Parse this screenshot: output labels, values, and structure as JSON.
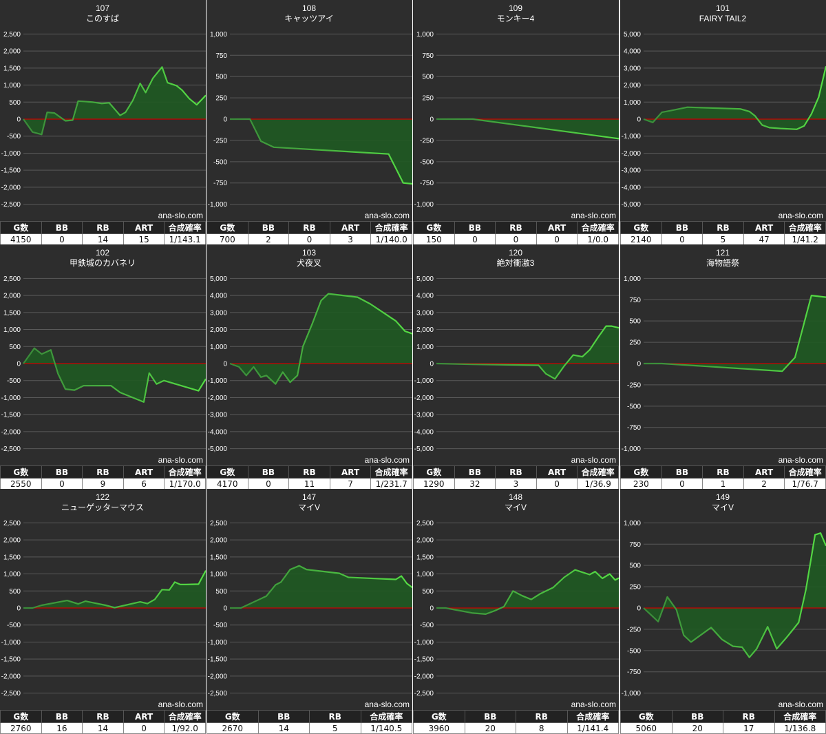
{
  "style": {
    "background": "#2d2d2d",
    "gridline": "#5a5a5a",
    "zero_line": "#cc0000",
    "line": "#55dd44",
    "line_dark": "#3a8a3a",
    "fill": "#1f5a22",
    "text": "#ffffff",
    "watermark": "ana-slo.com"
  },
  "chart_data": [
    {
      "type": "area",
      "machine_no": "107",
      "title": "このすば",
      "ylim": [
        -2750,
        2750
      ],
      "yticks": [
        2500,
        2000,
        1500,
        1000,
        500,
        0,
        -500,
        -1000,
        -1500,
        -2000,
        -2500
      ],
      "ytick_labels": [
        "2,500",
        "2,000",
        "1,500",
        "1,000",
        "500",
        "0",
        "-500",
        "-1,000",
        "-1,500",
        "-2,000",
        "-2,500"
      ],
      "x": [
        0,
        0.05,
        0.1,
        0.13,
        0.17,
        0.23,
        0.27,
        0.3,
        0.33,
        0.38,
        0.43,
        0.47,
        0.53,
        0.56,
        0.6,
        0.64,
        0.67,
        0.71,
        0.76,
        0.79,
        0.84,
        0.87,
        0.91,
        0.95,
        1
      ],
      "values": [
        0,
        -380,
        -450,
        200,
        180,
        -50,
        -30,
        530,
        520,
        500,
        460,
        480,
        110,
        200,
        550,
        1050,
        780,
        1200,
        1530,
        1070,
        980,
        850,
        600,
        420,
        700
      ],
      "stats": {
        "headers": [
          "G数",
          "BB",
          "RB",
          "ART",
          "合成確率"
        ],
        "values": [
          "4150",
          "0",
          "14",
          "15",
          "1/143.1"
        ]
      }
    },
    {
      "type": "area",
      "machine_no": "108",
      "title": "キャッツアイ",
      "ylim": [
        -1100,
        1100
      ],
      "yticks": [
        1000,
        750,
        500,
        250,
        0,
        -250,
        -500,
        -750,
        -1000
      ],
      "ytick_labels": [
        "1,000",
        "750",
        "500",
        "250",
        "0",
        "-250",
        "-500",
        "-750",
        "-1,000"
      ],
      "x": [
        0,
        0.11,
        0.17,
        0.24,
        0.87,
        0.95,
        1
      ],
      "values": [
        0,
        0,
        -260,
        -330,
        -410,
        -750,
        -760
      ],
      "stats": {
        "headers": [
          "G数",
          "BB",
          "RB",
          "ART",
          "合成確率"
        ],
        "values": [
          "700",
          "2",
          "0",
          "3",
          "1/140.0"
        ]
      }
    },
    {
      "type": "area",
      "machine_no": "109",
      "title": "モンキー4",
      "ylim": [
        -1100,
        1100
      ],
      "yticks": [
        1000,
        750,
        500,
        250,
        0,
        -250,
        -500,
        -750,
        -1000
      ],
      "ytick_labels": [
        "1,000",
        "750",
        "500",
        "250",
        "0",
        "-250",
        "-500",
        "-750",
        "-1,000"
      ],
      "x": [
        0,
        0.2,
        1
      ],
      "values": [
        0,
        0,
        -230
      ],
      "stats": {
        "headers": [
          "G数",
          "BB",
          "RB",
          "ART",
          "合成確率"
        ],
        "values": [
          "150",
          "0",
          "0",
          "0",
          "1/0.0"
        ]
      }
    },
    {
      "type": "area",
      "machine_no": "101",
      "title": "FAIRY TAIL2",
      "ylim": [
        -5500,
        5500
      ],
      "yticks": [
        5000,
        4000,
        3000,
        2000,
        1000,
        0,
        -1000,
        -2000,
        -3000,
        -4000,
        -5000
      ],
      "ytick_labels": [
        "5,000",
        "4,000",
        "3,000",
        "2,000",
        "1,000",
        "0",
        "-1,000",
        "-2,000",
        "-3,000",
        "-4,000",
        "-5,000"
      ],
      "x": [
        0,
        0.05,
        0.1,
        0.15,
        0.24,
        0.53,
        0.58,
        0.61,
        0.65,
        0.69,
        0.75,
        0.84,
        0.88,
        0.92,
        0.96,
        1
      ],
      "values": [
        0,
        -200,
        400,
        500,
        700,
        600,
        450,
        200,
        -350,
        -500,
        -550,
        -600,
        -400,
        300,
        1300,
        3100
      ],
      "stats": {
        "headers": [
          "G数",
          "BB",
          "RB",
          "ART",
          "合成確率"
        ],
        "values": [
          "2140",
          "0",
          "5",
          "47",
          "1/41.2"
        ]
      }
    },
    {
      "type": "area",
      "machine_no": "102",
      "title": "甲鉄城のカバネリ",
      "ylim": [
        -2750,
        2750
      ],
      "yticks": [
        2500,
        2000,
        1500,
        1000,
        500,
        0,
        -500,
        -1000,
        -1500,
        -2000,
        -2500
      ],
      "ytick_labels": [
        "2,500",
        "2,000",
        "1,500",
        "1,000",
        "500",
        "0",
        "-500",
        "-1,000",
        "-1,500",
        "-2,000",
        "-2,500"
      ],
      "x": [
        0,
        0.06,
        0.1,
        0.15,
        0.19,
        0.23,
        0.28,
        0.33,
        0.48,
        0.53,
        0.66,
        0.69,
        0.73,
        0.77,
        0.96,
        1
      ],
      "values": [
        0,
        450,
        280,
        400,
        -300,
        -750,
        -780,
        -650,
        -650,
        -850,
        -1130,
        -280,
        -600,
        -500,
        -800,
        -450
      ],
      "stats": {
        "headers": [
          "G数",
          "BB",
          "RB",
          "ART",
          "合成確率"
        ],
        "values": [
          "2550",
          "0",
          "9",
          "6",
          "1/170.0"
        ]
      }
    },
    {
      "type": "area",
      "machine_no": "103",
      "title": "犬夜叉",
      "ylim": [
        -5500,
        5500
      ],
      "yticks": [
        5000,
        4000,
        3000,
        2000,
        1000,
        0,
        -1000,
        -2000,
        -3000,
        -4000,
        -5000
      ],
      "ytick_labels": [
        "5,000",
        "4,000",
        "3,000",
        "2,000",
        "1,000",
        "0",
        "-1,000",
        "-2,000",
        "-3,000",
        "-4,000",
        "-5,000"
      ],
      "x": [
        0,
        0.05,
        0.09,
        0.13,
        0.17,
        0.2,
        0.25,
        0.29,
        0.33,
        0.37,
        0.4,
        0.45,
        0.5,
        0.54,
        0.7,
        0.77,
        0.84,
        0.91,
        0.96,
        1
      ],
      "values": [
        0,
        -200,
        -700,
        -200,
        -800,
        -700,
        -1200,
        -500,
        -1100,
        -700,
        1000,
        2300,
        3700,
        4100,
        3900,
        3500,
        3000,
        2500,
        1900,
        1750
      ],
      "stats": {
        "headers": [
          "G数",
          "BB",
          "RB",
          "ART",
          "合成確率"
        ],
        "values": [
          "4170",
          "0",
          "11",
          "7",
          "1/231.7"
        ]
      }
    },
    {
      "type": "area",
      "machine_no": "120",
      "title": "絶対衝激3",
      "ylim": [
        -5500,
        5500
      ],
      "yticks": [
        5000,
        4000,
        3000,
        2000,
        1000,
        0,
        -1000,
        -2000,
        -3000,
        -4000,
        -5000
      ],
      "ytick_labels": [
        "5,000",
        "4,000",
        "3,000",
        "2,000",
        "1,000",
        "0",
        "-1,000",
        "-2,000",
        "-3,000",
        "-4,000",
        "-5,000"
      ],
      "x": [
        0,
        0.2,
        0.56,
        0.6,
        0.65,
        0.7,
        0.75,
        0.8,
        0.84,
        0.89,
        0.93,
        0.96,
        1
      ],
      "values": [
        0,
        -50,
        -100,
        -600,
        -900,
        -150,
        500,
        400,
        800,
        1600,
        2200,
        2200,
        2100
      ],
      "stats": {
        "headers": [
          "G数",
          "BB",
          "RB",
          "ART",
          "合成確率"
        ],
        "values": [
          "1290",
          "32",
          "3",
          "0",
          "1/36.9"
        ]
      }
    },
    {
      "type": "area",
      "machine_no": "121",
      "title": "海物語祭",
      "ylim": [
        -1100,
        1100
      ],
      "yticks": [
        1000,
        750,
        500,
        250,
        0,
        -250,
        -500,
        -750,
        -1000
      ],
      "ytick_labels": [
        "1,000",
        "750",
        "500",
        "250",
        "0",
        "-250",
        "-500",
        "-750",
        "-1,000"
      ],
      "x": [
        0,
        0.1,
        0.76,
        0.83,
        0.92,
        1
      ],
      "values": [
        0,
        0,
        -90,
        70,
        800,
        780
      ],
      "stats": {
        "headers": [
          "G数",
          "BB",
          "RB",
          "ART",
          "合成確率"
        ],
        "values": [
          "230",
          "0",
          "1",
          "2",
          "1/76.7"
        ]
      }
    },
    {
      "type": "area",
      "machine_no": "122",
      "title": "ニューゲッターマウス",
      "ylim": [
        -2750,
        2750
      ],
      "yticks": [
        2500,
        2000,
        1500,
        1000,
        500,
        0,
        -500,
        -1000,
        -1500,
        -2000,
        -2500
      ],
      "ytick_labels": [
        "2,500",
        "2,000",
        "1,500",
        "1,000",
        "500",
        "0",
        "-500",
        "-1,000",
        "-1,500",
        "-2,000",
        "-2,500"
      ],
      "x": [
        0,
        0.05,
        0.1,
        0.24,
        0.3,
        0.34,
        0.45,
        0.5,
        0.64,
        0.68,
        0.72,
        0.76,
        0.8,
        0.83,
        0.86,
        0.89,
        0.96,
        1
      ],
      "values": [
        0,
        0,
        80,
        220,
        120,
        200,
        80,
        10,
        180,
        130,
        250,
        540,
        530,
        760,
        690,
        690,
        700,
        1100
      ],
      "stats": {
        "headers": [
          "G数",
          "BB",
          "RB",
          "ART",
          "合成確率"
        ],
        "values": [
          "2760",
          "16",
          "14",
          "0",
          "1/92.0"
        ]
      }
    },
    {
      "type": "area",
      "machine_no": "147",
      "title": "マイV",
      "ylim": [
        -2750,
        2750
      ],
      "yticks": [
        2500,
        2000,
        1500,
        1000,
        500,
        0,
        -500,
        -1000,
        -1500,
        -2000,
        -2500
      ],
      "ytick_labels": [
        "2,500",
        "2,000",
        "1,500",
        "1,000",
        "500",
        "0",
        "-500",
        "-1,000",
        "-1,500",
        "-2,000",
        "-2,500"
      ],
      "x": [
        0,
        0.06,
        0.2,
        0.25,
        0.28,
        0.33,
        0.38,
        0.42,
        0.6,
        0.65,
        0.91,
        0.94,
        0.97,
        1
      ],
      "values": [
        0,
        0,
        350,
        680,
        760,
        1130,
        1240,
        1130,
        1020,
        900,
        840,
        940,
        720,
        600
      ],
      "stats": {
        "headers": [
          "G数",
          "BB",
          "RB",
          "合成確率"
        ],
        "values": [
          "2670",
          "14",
          "5",
          "1/140.5"
        ]
      }
    },
    {
      "type": "area",
      "machine_no": "148",
      "title": "マイV",
      "ylim": [
        -2750,
        2750
      ],
      "yticks": [
        2500,
        2000,
        1500,
        1000,
        500,
        0,
        -500,
        -1000,
        -1500,
        -2000,
        -2500
      ],
      "ytick_labels": [
        "2,500",
        "2,000",
        "1,500",
        "1,000",
        "500",
        "0",
        "-500",
        "-1,000",
        "-1,500",
        "-2,000",
        "-2,500"
      ],
      "x": [
        0,
        0.05,
        0.1,
        0.2,
        0.27,
        0.32,
        0.37,
        0.42,
        0.47,
        0.52,
        0.57,
        0.64,
        0.7,
        0.76,
        0.8,
        0.84,
        0.87,
        0.91,
        0.95,
        0.98,
        1
      ],
      "values": [
        0,
        0,
        -50,
        -150,
        -180,
        -80,
        40,
        500,
        360,
        250,
        420,
        600,
        900,
        1120,
        1050,
        980,
        1070,
        870,
        1000,
        820,
        880
      ],
      "stats": {
        "headers": [
          "G数",
          "BB",
          "RB",
          "合成確率"
        ],
        "values": [
          "3960",
          "20",
          "8",
          "1/141.4"
        ]
      }
    },
    {
      "type": "area",
      "machine_no": "149",
      "title": "マイV",
      "ylim": [
        -1100,
        1100
      ],
      "yticks": [
        1000,
        750,
        500,
        250,
        0,
        -250,
        -500,
        -750,
        -1000
      ],
      "ytick_labels": [
        "1,000",
        "750",
        "500",
        "250",
        "0",
        "-250",
        "-500",
        "-750",
        "-1,000"
      ],
      "x": [
        0,
        0.08,
        0.13,
        0.18,
        0.22,
        0.26,
        0.37,
        0.43,
        0.49,
        0.54,
        0.58,
        0.62,
        0.68,
        0.73,
        0.79,
        0.85,
        0.89,
        0.94,
        0.97,
        1
      ],
      "values": [
        0,
        -160,
        130,
        -20,
        -320,
        -400,
        -230,
        -370,
        -450,
        -460,
        -580,
        -480,
        -220,
        -480,
        -330,
        -170,
        220,
        860,
        880,
        730
      ],
      "stats": {
        "headers": [
          "G数",
          "BB",
          "RB",
          "合成確率"
        ],
        "values": [
          "5060",
          "20",
          "17",
          "1/136.8"
        ]
      }
    }
  ]
}
